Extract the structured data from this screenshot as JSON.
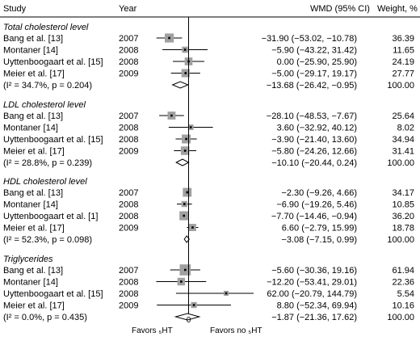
{
  "header": {
    "study": "Study",
    "year": "Year",
    "effect": "WMD (95% CI)",
    "weight": "Weight, %"
  },
  "chart_data": {
    "type": "forest",
    "axis": {
      "zero_tick_label": "0",
      "xlim": [
        -80,
        80
      ]
    },
    "favors_left": "Favors ₅HT",
    "favors_right": "Favors no ₅HT",
    "colors": {
      "box": "#a0a0a0",
      "line": "#000000"
    },
    "groups": [
      {
        "title": "Total cholesterol level",
        "studies": [
          {
            "study": "Bang et al. [13]",
            "year": "2007",
            "est": -31.9,
            "lo": -53.02,
            "hi": -10.78,
            "ci_text": "−31.90 (−53.02, −10.78)",
            "weight": 36.39,
            "weight_text": "36.39"
          },
          {
            "study": "Montaner [14]",
            "year": "2008",
            "est": -5.9,
            "lo": -43.22,
            "hi": 31.42,
            "ci_text": "−5.90 (−43.22, 31.42)",
            "weight": 11.65,
            "weight_text": "11.65"
          },
          {
            "study": "Uyttenboogaart et al. [15]",
            "year": "2008",
            "est": 0.0,
            "lo": -25.9,
            "hi": 25.9,
            "ci_text": "0.00 (−25.90, 25.90)",
            "weight": 24.19,
            "weight_text": "24.19"
          },
          {
            "study": "Meier et al. [17]",
            "year": "2009",
            "est": -5.0,
            "lo": -29.17,
            "hi": 19.17,
            "ci_text": "−5.00 (−29.17, 19.17)",
            "weight": 27.77,
            "weight_text": "27.77"
          }
        ],
        "overall": {
          "label": "(I² = 34.7%, p = 0.204)",
          "est": -13.68,
          "lo": -26.42,
          "hi": -0.95,
          "ci_text": "−13.68 (−26.42, −0.95)",
          "weight_text": "100.00"
        }
      },
      {
        "title": "LDL cholesterol level",
        "studies": [
          {
            "study": "Bang et al. [13]",
            "year": "2007",
            "est": -28.1,
            "lo": -48.53,
            "hi": -7.67,
            "ci_text": "−28.10 (−48.53, −7.67)",
            "weight": 25.64,
            "weight_text": "25.64"
          },
          {
            "study": "Montaner [14]",
            "year": "2008",
            "est": 3.6,
            "lo": -32.92,
            "hi": 40.12,
            "ci_text": "3.60 (−32.92, 40.12)",
            "weight": 8.02,
            "weight_text": "8.02"
          },
          {
            "study": "Uyttenboogaart et al. [15]",
            "year": "2008",
            "est": -3.9,
            "lo": -21.4,
            "hi": 13.6,
            "ci_text": "−3.90 (−21.40, 13.60)",
            "weight": 34.94,
            "weight_text": "34.94"
          },
          {
            "study": "Meier et al. [17]",
            "year": "2009",
            "est": -5.8,
            "lo": -24.26,
            "hi": 12.66,
            "ci_text": "−5.80 (−24.26, 12.66)",
            "weight": 31.41,
            "weight_text": "31.41"
          }
        ],
        "overall": {
          "label": "(I² = 28.8%, p = 0.239)",
          "est": -10.1,
          "lo": -20.44,
          "hi": 0.24,
          "ci_text": "−10.10 (−20.44, 0.24)",
          "weight_text": "100.00"
        }
      },
      {
        "title": "HDL cholesterol level",
        "studies": [
          {
            "study": "Bang et al. [13]",
            "year": "2007",
            "est": -2.3,
            "lo": -9.26,
            "hi": 4.66,
            "ci_text": "−2.30 (−9.26, 4.66)",
            "weight": 34.17,
            "weight_text": "34.17"
          },
          {
            "study": "Montaner [14]",
            "year": "2008",
            "est": -6.9,
            "lo": -19.26,
            "hi": 5.46,
            "ci_text": "−6.90 (−19.26, 5.46)",
            "weight": 10.85,
            "weight_text": "10.85"
          },
          {
            "study": "Uyttenboogaart et al. [1]",
            "year": "2008",
            "est": -7.7,
            "lo": -14.46,
            "hi": -0.94,
            "ci_text": "−7.70 (−14.46, −0.94)",
            "weight": 36.2,
            "weight_text": "36.20"
          },
          {
            "study": "Meier et al. [17]",
            "year": "2009",
            "est": 6.6,
            "lo": -2.79,
            "hi": 15.99,
            "ci_text": "6.60 (−2.79, 15.99)",
            "weight": 18.78,
            "weight_text": "18.78"
          }
        ],
        "overall": {
          "label": "(I² = 52.3%, p = 0.098)",
          "est": -3.08,
          "lo": -7.15,
          "hi": 0.99,
          "ci_text": "−3.08 (−7.15, 0.99)",
          "weight_text": "100.00"
        }
      },
      {
        "title": "Triglycerides",
        "studies": [
          {
            "study": "Bang et al. [13]",
            "year": "2007",
            "est": -5.6,
            "lo": -30.36,
            "hi": 19.16,
            "ci_text": "−5.60 (−30.36, 19.16)",
            "weight": 61.94,
            "weight_text": "61.94"
          },
          {
            "study": "Montaner [14]",
            "year": "2008",
            "est": -12.2,
            "lo": -53.41,
            "hi": 29.01,
            "ci_text": "−12.20 (−53.41, 29.01)",
            "weight": 22.36,
            "weight_text": "22.36"
          },
          {
            "study": "Uyttenboogaart et al. [15]",
            "year": "2008",
            "est": 62.0,
            "lo": -20.79,
            "hi": 144.79,
            "ci_text": "62.00 (−20.79, 144.79)",
            "weight": 5.54,
            "weight_text": "5.54"
          },
          {
            "study": "Meier et al. [17]",
            "year": "2009",
            "est": 8.8,
            "lo": -52.34,
            "hi": 69.94,
            "ci_text": "8.80 (−52.34, 69.94)",
            "weight": 10.16,
            "weight_text": "10.16"
          }
        ],
        "overall": {
          "label": "(I² = 0.0%, p = 0.435)",
          "est": -1.87,
          "lo": -21.36,
          "hi": 17.62,
          "ci_text": "−1.87 (−21.36, 17.62)",
          "weight_text": "100.00"
        }
      }
    ]
  }
}
